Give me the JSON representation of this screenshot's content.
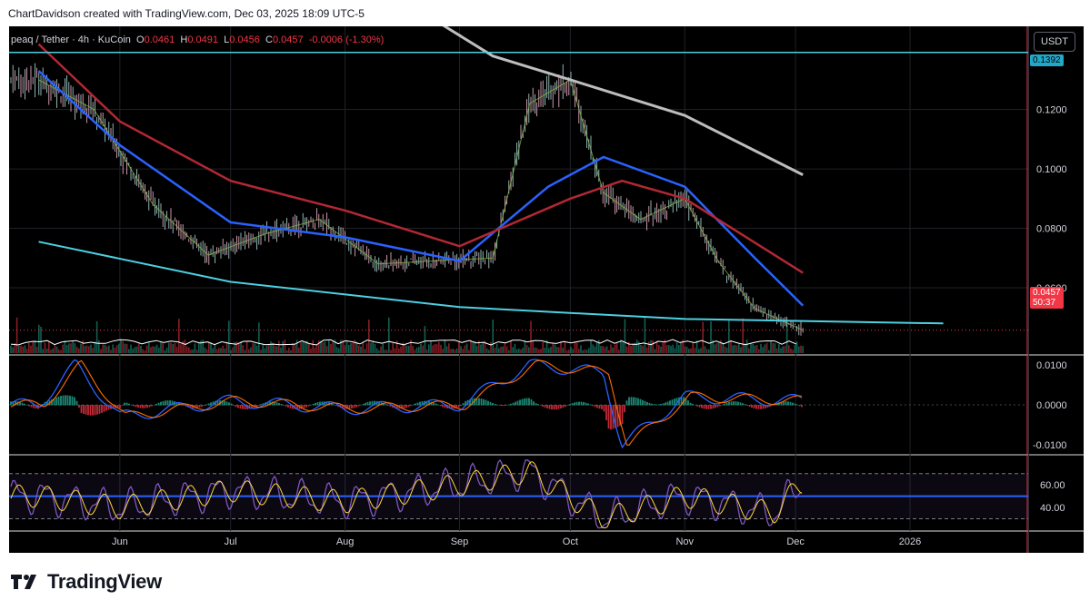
{
  "header": {
    "credit": "ChartDavidson created with TradingView.com, Dec 03, 2025 18:09 UTC-5"
  },
  "legend": {
    "symbol": "peaq / Tether · 4h · KuCoin",
    "open_label": "O",
    "open": "0.0461",
    "high_label": "H",
    "high": "0.0491",
    "low_label": "L",
    "low": "0.0456",
    "close_label": "C",
    "close": "0.0457",
    "change": "-0.0006 (-1.30%)"
  },
  "quote_currency": "USDT",
  "level_tag": "0.1392",
  "last_price": {
    "price": "0.0457",
    "countdown": "50:37"
  },
  "logo": {
    "text": "TradingView",
    "icon": "tradingview-logo-icon"
  },
  "colors": {
    "up": "#22ab94",
    "down": "#f23645",
    "ma_fast": "#8bc34a",
    "ma_mid": "#2962ff",
    "ma_slow": "#b22833",
    "ma_long": "#bdbdbd",
    "lowerband": "#4dd0e1",
    "macd": "#2962ff",
    "signal": "#ff6d00",
    "rsi": "#7e57c2",
    "rsi_ma": "#fdd835"
  },
  "chart_data": [
    {
      "type": "line",
      "title": "",
      "x_tick_labels": [
        "Jun",
        "Jul",
        "Aug",
        "Sep",
        "Oct",
        "Nov",
        "Dec",
        "2026"
      ],
      "y_tick_labels": [
        "0.1200",
        "0.1000",
        "0.0800",
        "0.0600"
      ],
      "ylim": [
        0.038,
        0.148
      ],
      "horizontal_level": 0.1392,
      "last_price": 0.0457,
      "ohlc_last": {
        "open": 0.0461,
        "high": 0.0491,
        "low": 0.0456,
        "close": 0.0457
      },
      "series": [
        {
          "x": [
            "2025-05-10",
            "2025-05-25",
            "2025-06-10",
            "2025-06-25",
            "2025-07-10",
            "2025-07-25",
            "2025-08-10",
            "2025-08-25",
            "2025-09-10",
            "2025-09-20",
            "2025-10-01",
            "2025-10-10",
            "2025-10-20",
            "2025-11-01",
            "2025-11-10",
            "2025-11-20",
            "2025-12-03"
          ],
          "values": [
            0.13,
            0.12,
            0.088,
            0.071,
            0.078,
            0.083,
            0.068,
            0.069,
            0.07,
            0.122,
            0.13,
            0.092,
            0.083,
            0.09,
            0.069,
            0.053,
            0.0457
          ]
        },
        {
          "x": [
            "2025-05-10",
            "2025-06-01",
            "2025-07-01",
            "2025-08-01",
            "2025-09-01",
            "2025-09-25",
            "2025-10-10",
            "2025-11-01",
            "2025-11-20",
            "2025-12-03"
          ],
          "values": [
            0.133,
            0.108,
            0.082,
            0.077,
            0.069,
            0.094,
            0.104,
            0.094,
            0.07,
            0.054
          ]
        },
        {
          "x": [
            "2025-05-10",
            "2025-06-01",
            "2025-07-01",
            "2025-08-01",
            "2025-09-01",
            "2025-10-01",
            "2025-10-15",
            "2025-11-01",
            "2025-12-03"
          ],
          "values": [
            0.142,
            0.116,
            0.096,
            0.086,
            0.074,
            0.09,
            0.096,
            0.09,
            0.065
          ]
        },
        {
          "x": [
            "2025-08-15",
            "2025-09-10",
            "2025-10-01",
            "2025-11-01",
            "2025-12-03"
          ],
          "values": [
            0.158,
            0.138,
            0.13,
            0.118,
            0.098
          ]
        },
        {
          "x": [
            "2025-05-10",
            "2025-07-01",
            "2025-09-01",
            "2025-11-01",
            "2026-01-10"
          ],
          "values": [
            0.0755,
            0.062,
            0.0535,
            0.0495,
            0.048
          ]
        }
      ]
    },
    {
      "type": "line",
      "title": "",
      "y_tick_labels": [
        "0.0100",
        "0.0000",
        "-0.0100"
      ],
      "ylim": [
        -0.012,
        0.012
      ],
      "series": [
        {
          "x": [
            "2025-05-10",
            "2025-05-20",
            "2025-06-01",
            "2025-07-01",
            "2025-08-01",
            "2025-09-01",
            "2025-09-20",
            "2025-10-10",
            "2025-10-15",
            "2025-11-01",
            "2025-12-03"
          ],
          "values": [
            0.0,
            0.01,
            -0.003,
            0.001,
            -0.001,
            0.0,
            0.01,
            0.008,
            -0.01,
            0.002,
            0.001
          ]
        }
      ]
    },
    {
      "type": "line",
      "title": "",
      "y_tick_labels": [
        "60.00",
        "40.00"
      ],
      "ylim": [
        20,
        85
      ],
      "bands": [
        70,
        50,
        30
      ],
      "series": [
        {
          "x": [
            "2025-05-10",
            "2025-06-01",
            "2025-07-01",
            "2025-08-01",
            "2025-09-01",
            "2025-09-20",
            "2025-10-10",
            "2025-11-01",
            "2025-11-25",
            "2025-12-03"
          ],
          "values": [
            50,
            40,
            55,
            45,
            60,
            72,
            30,
            50,
            35,
            62
          ]
        }
      ]
    }
  ]
}
